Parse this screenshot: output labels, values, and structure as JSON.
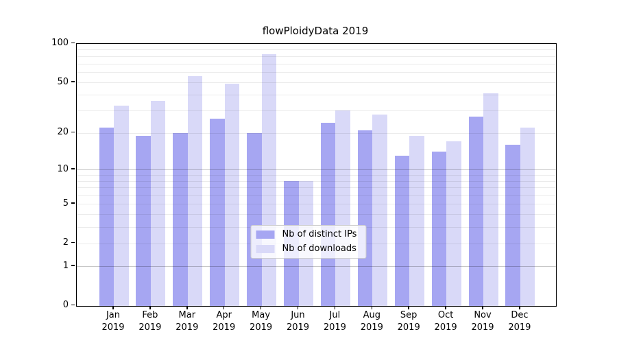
{
  "title": "flowPloidyData 2019",
  "chart_data": {
    "type": "bar",
    "title": "flowPloidyData 2019",
    "categories": [
      "Jan",
      "Feb",
      "Mar",
      "Apr",
      "May",
      "Jun",
      "Jul",
      "Aug",
      "Sep",
      "Oct",
      "Nov",
      "Dec"
    ],
    "year": "2019",
    "series": [
      {
        "name": "Nb of distinct IPs",
        "color": "#a6a6f2",
        "values": [
          22,
          19,
          20,
          26,
          20,
          8,
          24,
          21,
          13,
          14,
          27,
          16
        ]
      },
      {
        "name": "Nb of downloads",
        "color": "#d9d9f8",
        "values": [
          33,
          36,
          56,
          49,
          83,
          8,
          30,
          28,
          19,
          17,
          41,
          22
        ]
      }
    ],
    "xlabel": "",
    "ylabel": "",
    "y_axis": {
      "scale": "log1p",
      "ylim": [
        0,
        100
      ],
      "tick_values": [
        0,
        1,
        2,
        5,
        10,
        20,
        50,
        100
      ],
      "major_gridlines": [
        1,
        10
      ],
      "minor_gridlines": [
        2,
        3,
        4,
        5,
        6,
        7,
        8,
        9,
        20,
        30,
        40,
        50,
        60,
        70,
        80,
        90
      ]
    },
    "grid": true,
    "legend_position": "lower center"
  }
}
